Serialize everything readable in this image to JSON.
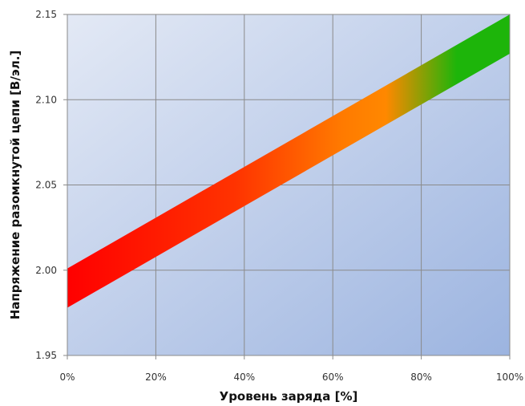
{
  "chart_data": {
    "type": "area",
    "title": "",
    "xlabel": "Уровень заряда [%]",
    "ylabel": "Напряжение разомкнутой цепи [В/эл.]",
    "xlim": [
      0,
      100
    ],
    "ylim": [
      1.95,
      2.15
    ],
    "x_ticks": [
      {
        "value": 0,
        "label": "0%"
      },
      {
        "value": 20,
        "label": "20%"
      },
      {
        "value": 40,
        "label": "40%"
      },
      {
        "value": 60,
        "label": "60%"
      },
      {
        "value": 80,
        "label": "80%"
      },
      {
        "value": 100,
        "label": "100%"
      }
    ],
    "y_ticks": [
      {
        "value": 1.95,
        "label": "1.95"
      },
      {
        "value": 2.0,
        "label": "2.00"
      },
      {
        "value": 2.05,
        "label": "2.05"
      },
      {
        "value": 2.1,
        "label": "2.10"
      },
      {
        "value": 2.15,
        "label": "2.15"
      }
    ],
    "grid": true,
    "band": {
      "x": [
        0,
        100
      ],
      "upper": [
        2.001,
        2.15
      ],
      "lower": [
        1.978,
        2.127
      ]
    },
    "colors": {
      "low": "#ff0000",
      "mid_low": "#ff3300",
      "mid": "#ff7a00",
      "mid_high": "#ff8800",
      "high": "#1db50a",
      "background_light": "#e3e9f5",
      "background_dark": "#9cb4e0",
      "grid": "#8a8a8a"
    }
  }
}
